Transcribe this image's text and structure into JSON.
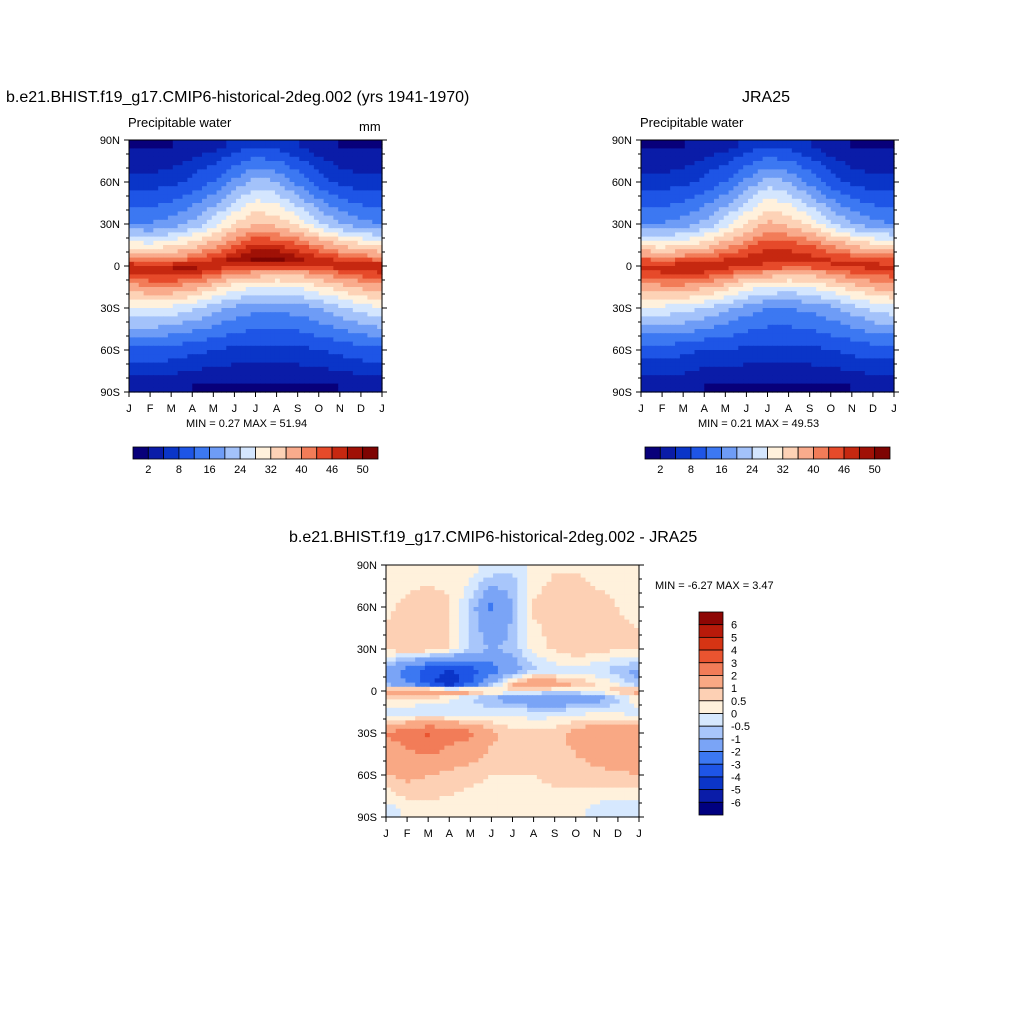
{
  "palette": [
    "#08007a",
    "#0a1ca8",
    "#0a35c8",
    "#1e55e6",
    "#3c78f2",
    "#6e9cf6",
    "#a3c2fa",
    "#d4e6fe",
    "#fff1dc",
    "#fdd2b6",
    "#f9ab8c",
    "#f27c58",
    "#e64a2a",
    "#c62810",
    "#a01106",
    "#7e0402"
  ],
  "panel_left": {
    "title": "b.e21.BHIST.f19_g17.CMIP6-historical-2deg.002 (yrs 1941-1970)",
    "left_label": "Precipitable water",
    "right_label": "mm",
    "stats": "MIN =   0.27 MAX =  51.94",
    "colorbar_labels": [
      "2",
      "8",
      "16",
      "24",
      "32",
      "40",
      "46",
      "50"
    ]
  },
  "panel_right": {
    "title": "JRA25",
    "left_label": "Precipitable water",
    "stats": "MIN =   0.21 MAX =  49.53",
    "colorbar_labels": [
      "2",
      "8",
      "16",
      "24",
      "32",
      "40",
      "46",
      "50"
    ]
  },
  "panel_diff": {
    "title": "b.e21.BHIST.f19_g17.CMIP6-historical-2deg.002 - JRA25",
    "stats": "MIN =  -6.27 MAX =   3.47",
    "colorbar_labels": [
      "6",
      "5",
      "4",
      "3",
      "2",
      "1",
      "0.5",
      "0",
      "-0.5",
      "-1",
      "-2",
      "-3",
      "-4",
      "-5",
      "-6"
    ]
  },
  "axes": {
    "y_ticks": [
      "90N",
      "60N",
      "30N",
      "0",
      "30S",
      "60S",
      "90S"
    ],
    "x_ticks": [
      "J",
      "F",
      "M",
      "A",
      "M",
      "J",
      "J",
      "A",
      "S",
      "O",
      "N",
      "D",
      "J"
    ]
  },
  "chart_data": [
    {
      "type": "heatmap",
      "title": "b.e21.BHIST.f19_g17.CMIP6-historical-2deg.002 (yrs 1941-1970)",
      "variable": "Precipitable water",
      "units": "mm",
      "x_categories": [
        "J",
        "F",
        "M",
        "A",
        "M",
        "J",
        "J",
        "A",
        "S",
        "O",
        "N",
        "D",
        "J"
      ],
      "y_range": [
        -90,
        90
      ],
      "min": 0.27,
      "max": 51.94,
      "levels": [
        2,
        5,
        8,
        12,
        16,
        20,
        24,
        28,
        32,
        36,
        40,
        43,
        46,
        48,
        50
      ],
      "approx_values_rows_lat": [
        85,
        60,
        30,
        15,
        5,
        0,
        -5,
        -15,
        -30,
        -60,
        -85
      ],
      "approx_values": [
        [
          2,
          2,
          2,
          3,
          4,
          6,
          8,
          7,
          5,
          3,
          2,
          2,
          2
        ],
        [
          6,
          6,
          7,
          9,
          12,
          17,
          22,
          20,
          15,
          10,
          7,
          6,
          6
        ],
        [
          16,
          16,
          18,
          21,
          26,
          32,
          36,
          35,
          31,
          25,
          20,
          17,
          16
        ],
        [
          30,
          29,
          31,
          34,
          38,
          43,
          47,
          46,
          44,
          40,
          36,
          33,
          30
        ],
        [
          42,
          40,
          41,
          43,
          46,
          49,
          51,
          51,
          49,
          47,
          45,
          43,
          42
        ],
        [
          48,
          47,
          48,
          49,
          48,
          47,
          46,
          46,
          46,
          47,
          48,
          48,
          48
        ],
        [
          46,
          47,
          48,
          47,
          44,
          41,
          39,
          38,
          38,
          40,
          43,
          45,
          46
        ],
        [
          38,
          40,
          40,
          38,
          34,
          30,
          28,
          27,
          28,
          31,
          34,
          37,
          38
        ],
        [
          28,
          28,
          27,
          25,
          22,
          19,
          17,
          17,
          18,
          20,
          23,
          26,
          28
        ],
        [
          11,
          11,
          10,
          9,
          8,
          7,
          7,
          7,
          7,
          8,
          9,
          10,
          11
        ],
        [
          3,
          3,
          3,
          2,
          2,
          2,
          2,
          2,
          2,
          2,
          2,
          3,
          3
        ]
      ]
    },
    {
      "type": "heatmap",
      "title": "JRA25",
      "variable": "Precipitable water",
      "x_categories": [
        "J",
        "F",
        "M",
        "A",
        "M",
        "J",
        "J",
        "A",
        "S",
        "O",
        "N",
        "D",
        "J"
      ],
      "y_range": [
        -90,
        90
      ],
      "min": 0.21,
      "max": 49.53,
      "levels": [
        2,
        5,
        8,
        12,
        16,
        20,
        24,
        28,
        32,
        36,
        40,
        43,
        46,
        48,
        50
      ],
      "approx_values_rows_lat": [
        85,
        60,
        30,
        15,
        5,
        0,
        -5,
        -15,
        -30,
        -60,
        -85
      ],
      "approx_values": [
        [
          2,
          2,
          2,
          3,
          4,
          6,
          8,
          7,
          5,
          3,
          2,
          2,
          2
        ],
        [
          6,
          6,
          7,
          9,
          12,
          17,
          22,
          20,
          15,
          10,
          7,
          6,
          6
        ],
        [
          16,
          16,
          18,
          21,
          26,
          32,
          37,
          35,
          31,
          25,
          20,
          17,
          16
        ],
        [
          31,
          30,
          31,
          34,
          38,
          42,
          45,
          45,
          43,
          40,
          36,
          33,
          31
        ],
        [
          43,
          42,
          43,
          44,
          46,
          47,
          48,
          48,
          47,
          46,
          45,
          44,
          43
        ],
        [
          47,
          47,
          48,
          48,
          47,
          46,
          45,
          45,
          45,
          46,
          47,
          47,
          47
        ],
        [
          45,
          46,
          47,
          46,
          44,
          41,
          39,
          38,
          38,
          40,
          43,
          44,
          45
        ],
        [
          38,
          39,
          39,
          37,
          34,
          30,
          28,
          27,
          28,
          31,
          34,
          37,
          38
        ],
        [
          27,
          27,
          26,
          24,
          21,
          18,
          16,
          16,
          17,
          19,
          22,
          25,
          27
        ],
        [
          10,
          10,
          9,
          8,
          8,
          7,
          7,
          7,
          7,
          8,
          9,
          10,
          10
        ],
        [
          3,
          3,
          3,
          2,
          2,
          2,
          2,
          2,
          2,
          2,
          2,
          3,
          3
        ]
      ]
    },
    {
      "type": "heatmap",
      "title": "b.e21.BHIST.f19_g17.CMIP6-historical-2deg.002 - JRA25",
      "x_categories": [
        "J",
        "F",
        "M",
        "A",
        "M",
        "J",
        "J",
        "A",
        "S",
        "O",
        "N",
        "D",
        "J"
      ],
      "y_range": [
        -90,
        90
      ],
      "min": -6.27,
      "max": 3.47,
      "levels": [
        -6,
        -5,
        -4,
        -3,
        -2,
        -1,
        -0.5,
        0,
        0.5,
        1,
        2,
        3,
        4,
        5,
        6
      ],
      "approx_values_rows_lat": [
        85,
        60,
        30,
        15,
        5,
        0,
        -5,
        -15,
        -30,
        -60,
        -85
      ],
      "approx_values": [
        [
          0.3,
          0.3,
          0.4,
          0.3,
          0.2,
          -0.3,
          -0.5,
          0.2,
          0.5,
          0.5,
          0.3,
          0.3,
          0.3
        ],
        [
          0.4,
          0.6,
          0.7,
          0.6,
          -0.6,
          -2.2,
          -1.0,
          0.6,
          0.8,
          0.9,
          0.7,
          0.5,
          0.4
        ],
        [
          0.6,
          1.0,
          0.9,
          0.5,
          -0.5,
          -1.0,
          -0.8,
          0.2,
          0.6,
          0.9,
          0.7,
          0.6,
          0.6
        ],
        [
          -1.2,
          -2.5,
          -3.5,
          -4.0,
          -3.5,
          -2.5,
          -1.5,
          -0.6,
          -0.3,
          -0.2,
          -0.4,
          -0.8,
          -1.2
        ],
        [
          -1.0,
          -2.0,
          -3.5,
          -5.0,
          -3.0,
          -1.0,
          1.0,
          2.0,
          1.5,
          1.0,
          0.5,
          0.0,
          -1.0
        ],
        [
          1.5,
          2.0,
          2.3,
          2.0,
          1.5,
          0.8,
          0.4,
          0.2,
          0.0,
          0.0,
          0.3,
          0.8,
          1.5
        ],
        [
          0.5,
          0.7,
          0.5,
          0.2,
          -0.5,
          -1.0,
          -1.5,
          -2.0,
          -2.0,
          -1.8,
          -1.5,
          -0.6,
          0.5
        ],
        [
          -0.3,
          -0.5,
          -0.5,
          -0.4,
          -0.3,
          -0.2,
          -0.2,
          -0.3,
          -0.3,
          -0.2,
          -0.1,
          -0.2,
          -0.3
        ],
        [
          2.0,
          2.5,
          3.2,
          2.5,
          2.2,
          1.2,
          0.7,
          0.6,
          0.8,
          1.3,
          1.8,
          2.0,
          2.0
        ],
        [
          1.0,
          1.2,
          1.0,
          0.8,
          0.6,
          0.5,
          0.5,
          0.5,
          0.6,
          0.7,
          0.8,
          0.9,
          1.0
        ],
        [
          -0.3,
          0.2,
          0.3,
          0.3,
          0.3,
          0.3,
          0.3,
          0.3,
          0.3,
          0.2,
          -0.2,
          -0.4,
          -0.3
        ]
      ]
    }
  ]
}
